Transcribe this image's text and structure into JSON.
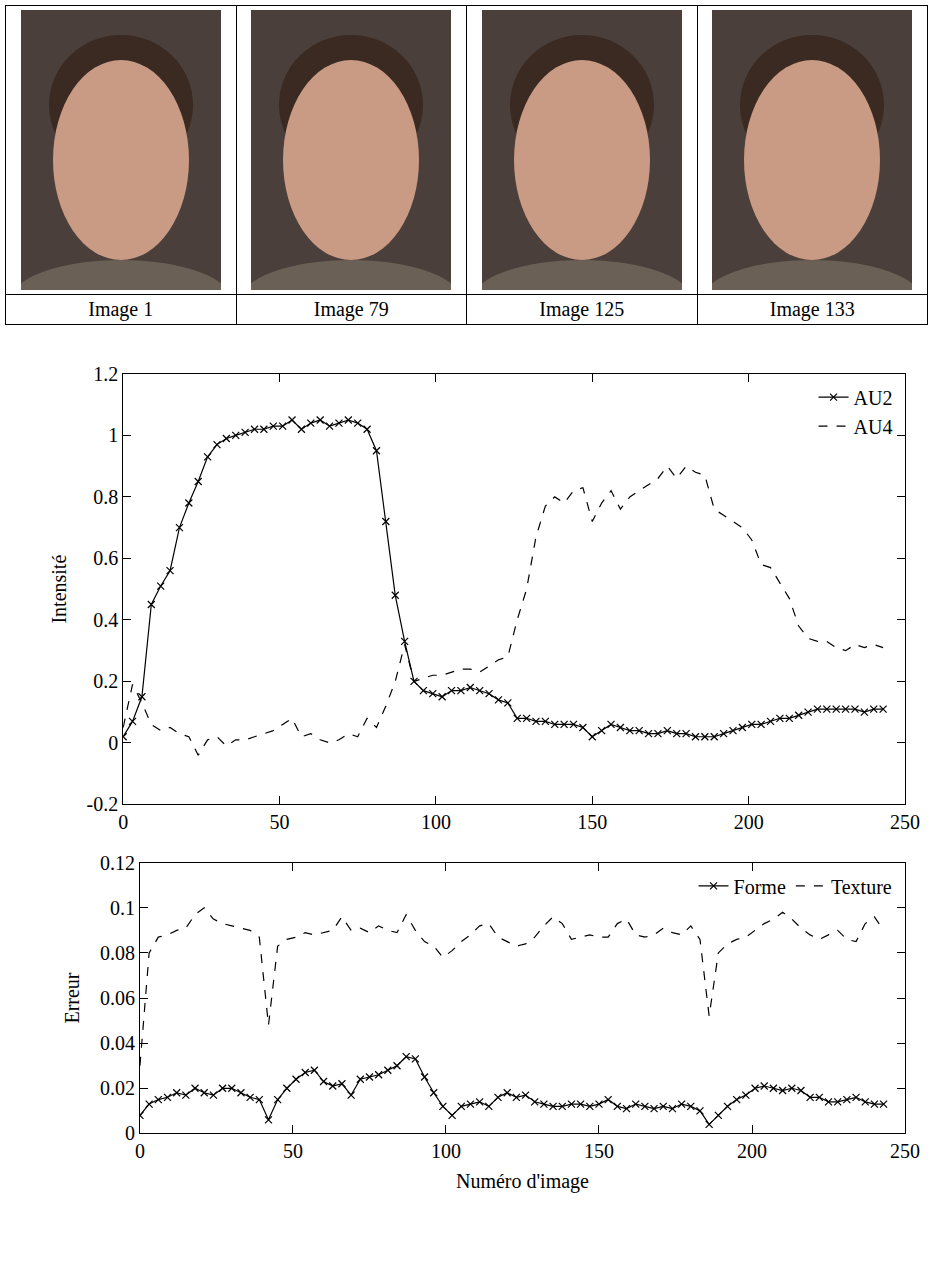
{
  "image_captions": [
    "Image 1",
    "Image 79",
    "Image 125",
    "Image 133"
  ],
  "chart_data": [
    {
      "type": "line",
      "y_label": "Intensité",
      "x": [
        0,
        3,
        6,
        9,
        12,
        15,
        18,
        21,
        24,
        27,
        30,
        33,
        36,
        39,
        42,
        45,
        48,
        51,
        54,
        57,
        60,
        63,
        66,
        69,
        72,
        75,
        78,
        81,
        84,
        87,
        90,
        93,
        96,
        99,
        102,
        105,
        108,
        111,
        114,
        117,
        120,
        123,
        126,
        129,
        132,
        135,
        138,
        141,
        144,
        147,
        150,
        153,
        156,
        159,
        162,
        165,
        168,
        171,
        174,
        177,
        180,
        183,
        186,
        189,
        192,
        195,
        198,
        201,
        204,
        207,
        210,
        213,
        216,
        219,
        222,
        225,
        228,
        231,
        234,
        237,
        240,
        243
      ],
      "series": [
        {
          "name": "AU2",
          "color": "#000000",
          "marker": "x",
          "line_style": "solid",
          "values": [
            0.02,
            0.07,
            0.15,
            0.45,
            0.51,
            0.56,
            0.7,
            0.78,
            0.85,
            0.93,
            0.97,
            0.99,
            1.0,
            1.01,
            1.02,
            1.02,
            1.03,
            1.03,
            1.05,
            1.02,
            1.04,
            1.05,
            1.03,
            1.04,
            1.05,
            1.04,
            1.02,
            0.95,
            0.72,
            0.48,
            0.33,
            0.2,
            0.17,
            0.16,
            0.15,
            0.17,
            0.17,
            0.18,
            0.17,
            0.16,
            0.14,
            0.13,
            0.08,
            0.08,
            0.07,
            0.07,
            0.06,
            0.06,
            0.06,
            0.05,
            0.02,
            0.04,
            0.06,
            0.05,
            0.04,
            0.04,
            0.03,
            0.03,
            0.04,
            0.03,
            0.03,
            0.02,
            0.02,
            0.02,
            0.03,
            0.04,
            0.05,
            0.06,
            0.06,
            0.07,
            0.08,
            0.08,
            0.09,
            0.1,
            0.11,
            0.11,
            0.11,
            0.11,
            0.11,
            0.1,
            0.11,
            0.11
          ]
        },
        {
          "name": "AU4",
          "color": "#000000",
          "marker": "none",
          "line_style": "dashed",
          "values": [
            0.05,
            0.19,
            0.13,
            0.06,
            0.04,
            0.05,
            0.03,
            0.02,
            -0.04,
            0.01,
            0.02,
            -0.01,
            0.01,
            0.01,
            0.02,
            0.03,
            0.04,
            0.06,
            0.08,
            0.02,
            0.03,
            0.01,
            0,
            0.01,
            0.03,
            0.02,
            0.08,
            0.05,
            0.12,
            0.2,
            0.32,
            0.2,
            0.21,
            0.22,
            0.22,
            0.23,
            0.24,
            0.24,
            0.23,
            0.25,
            0.27,
            0.28,
            0.4,
            0.5,
            0.67,
            0.77,
            0.8,
            0.78,
            0.82,
            0.83,
            0.72,
            0.78,
            0.82,
            0.76,
            0.8,
            0.82,
            0.84,
            0.86,
            0.9,
            0.86,
            0.9,
            0.88,
            0.87,
            0.76,
            0.74,
            0.72,
            0.7,
            0.66,
            0.58,
            0.57,
            0.52,
            0.47,
            0.38,
            0.34,
            0.33,
            0.33,
            0.31,
            0.3,
            0.32,
            0.31,
            0.32,
            0.31
          ]
        }
      ],
      "xlim": [
        0,
        250
      ],
      "xticks": [
        0,
        50,
        100,
        150,
        200,
        250
      ],
      "ylim": [
        -0.2,
        1.2
      ],
      "yticks": [
        -0.2,
        0,
        0.2,
        0.4,
        0.6,
        0.8,
        1,
        1.2
      ],
      "legend": "upper right",
      "grid": false
    },
    {
      "type": "line",
      "x_label": "Numéro d'image",
      "y_label": "Erreur",
      "x": [
        0,
        3,
        6,
        9,
        12,
        15,
        18,
        21,
        24,
        27,
        30,
        33,
        36,
        39,
        42,
        45,
        48,
        51,
        54,
        57,
        60,
        63,
        66,
        69,
        72,
        75,
        78,
        81,
        84,
        87,
        90,
        93,
        96,
        99,
        102,
        105,
        108,
        111,
        114,
        117,
        120,
        123,
        126,
        129,
        132,
        135,
        138,
        141,
        144,
        147,
        150,
        153,
        156,
        159,
        162,
        165,
        168,
        171,
        174,
        177,
        180,
        183,
        186,
        189,
        192,
        195,
        198,
        201,
        204,
        207,
        210,
        213,
        216,
        219,
        222,
        225,
        228,
        231,
        234,
        237,
        240,
        243
      ],
      "series": [
        {
          "name": "Forme",
          "color": "#000000",
          "marker": "x",
          "line_style": "solid",
          "values": [
            0.008,
            0.013,
            0.015,
            0.016,
            0.018,
            0.017,
            0.02,
            0.018,
            0.017,
            0.02,
            0.02,
            0.018,
            0.016,
            0.015,
            0.006,
            0.015,
            0.02,
            0.024,
            0.027,
            0.028,
            0.023,
            0.021,
            0.022,
            0.017,
            0.024,
            0.025,
            0.026,
            0.028,
            0.03,
            0.034,
            0.033,
            0.025,
            0.018,
            0.012,
            0.008,
            0.012,
            0.013,
            0.014,
            0.012,
            0.016,
            0.018,
            0.016,
            0.017,
            0.014,
            0.013,
            0.012,
            0.012,
            0.013,
            0.013,
            0.012,
            0.013,
            0.015,
            0.012,
            0.011,
            0.013,
            0.012,
            0.011,
            0.012,
            0.011,
            0.013,
            0.012,
            0.01,
            0.004,
            0.008,
            0.012,
            0.015,
            0.017,
            0.02,
            0.021,
            0.02,
            0.019,
            0.02,
            0.019,
            0.016,
            0.016,
            0.014,
            0.014,
            0.015,
            0.016,
            0.014,
            0.013,
            0.013
          ]
        },
        {
          "name": "Texture",
          "color": "#000000",
          "marker": "none",
          "line_style": "dashed",
          "values": [
            0.03,
            0.08,
            0.087,
            0.088,
            0.09,
            0.091,
            0.097,
            0.1,
            0.095,
            0.093,
            0.092,
            0.091,
            0.09,
            0.087,
            0.048,
            0.083,
            0.086,
            0.087,
            0.089,
            0.088,
            0.089,
            0.09,
            0.096,
            0.09,
            0.091,
            0.089,
            0.092,
            0.09,
            0.089,
            0.097,
            0.09,
            0.085,
            0.083,
            0.078,
            0.081,
            0.085,
            0.088,
            0.092,
            0.093,
            0.087,
            0.085,
            0.083,
            0.084,
            0.087,
            0.092,
            0.096,
            0.093,
            0.086,
            0.087,
            0.088,
            0.087,
            0.087,
            0.093,
            0.095,
            0.088,
            0.087,
            0.088,
            0.091,
            0.089,
            0.088,
            0.092,
            0.086,
            0.052,
            0.08,
            0.084,
            0.086,
            0.087,
            0.09,
            0.093,
            0.095,
            0.098,
            0.095,
            0.091,
            0.088,
            0.086,
            0.088,
            0.09,
            0.086,
            0.085,
            0.093,
            0.096,
            0.09
          ]
        }
      ],
      "xlim": [
        0,
        250
      ],
      "xticks": [
        0,
        50,
        100,
        150,
        200,
        250
      ],
      "ylim": [
        0,
        0.12
      ],
      "yticks": [
        0,
        0.02,
        0.04,
        0.06,
        0.08,
        0.1,
        0.12
      ],
      "legend": "upper right",
      "grid": false
    }
  ]
}
